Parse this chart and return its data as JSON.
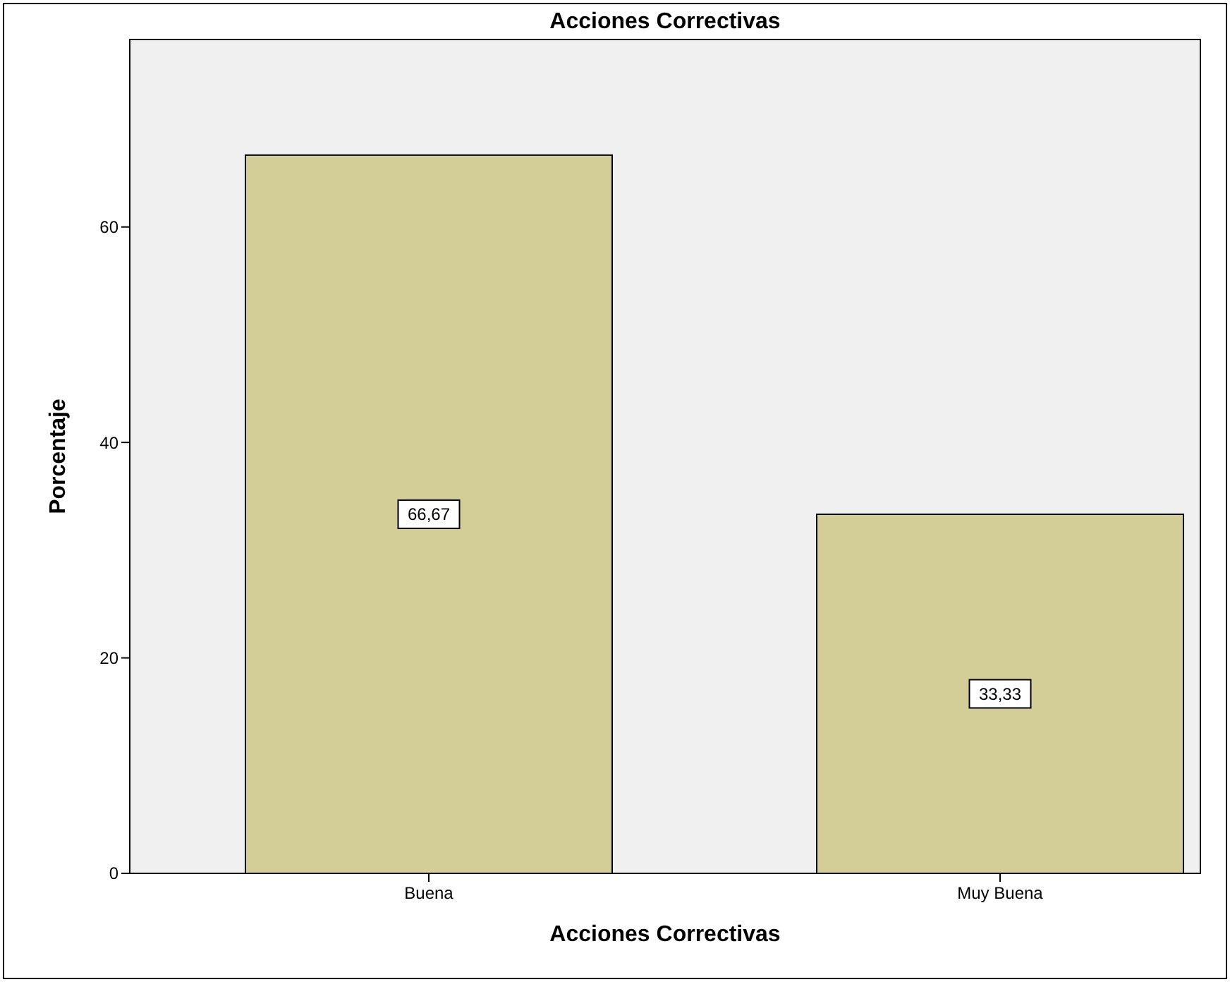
{
  "chart_data": {
    "type": "bar",
    "title": "Acciones Correctivas",
    "xlabel": "Acciones Correctivas",
    "ylabel": "Porcentaje",
    "categories": [
      "Buena",
      "Muy Buena"
    ],
    "values": [
      66.67,
      33.33
    ],
    "value_labels": [
      "66,67",
      "33,33"
    ],
    "color": "#d3cd98",
    "ylim": [
      0,
      77.4
    ],
    "yticks": [
      0,
      20,
      40,
      60
    ],
    "grid": false
  }
}
